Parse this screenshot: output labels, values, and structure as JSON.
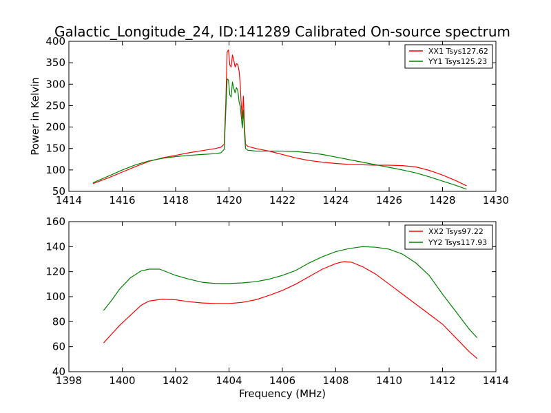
{
  "figure": {
    "title": "Galactic_Longitude_24, ID:141289 Calibrated On-source spectrum"
  },
  "chart_data": [
    {
      "type": "line",
      "xlabel": "",
      "ylabel": "Power in Kelvin",
      "xlim": [
        1414,
        1430
      ],
      "ylim": [
        50,
        400
      ],
      "xticks": [
        1414,
        1416,
        1418,
        1420,
        1422,
        1424,
        1426,
        1428,
        1430
      ],
      "yticks": [
        50,
        100,
        150,
        200,
        250,
        300,
        350,
        400
      ],
      "grid": false,
      "legend_position": "top-right",
      "series": [
        {
          "name": "XX1 Tsys127.62",
          "color": "#ff0000",
          "points": [
            [
              1414.9,
              68
            ],
            [
              1415.5,
              82
            ],
            [
              1416,
              95
            ],
            [
              1416.5,
              108
            ],
            [
              1417,
              120
            ],
            [
              1417.5,
              128
            ],
            [
              1418,
              134
            ],
            [
              1418.5,
              140
            ],
            [
              1419,
              145
            ],
            [
              1419.5,
              150
            ],
            [
              1419.7,
              153
            ],
            [
              1419.82,
              160
            ],
            [
              1419.88,
              260
            ],
            [
              1419.93,
              375
            ],
            [
              1419.98,
              380
            ],
            [
              1420.03,
              345
            ],
            [
              1420.08,
              340
            ],
            [
              1420.13,
              368
            ],
            [
              1420.18,
              355
            ],
            [
              1420.23,
              340
            ],
            [
              1420.28,
              348
            ],
            [
              1420.33,
              346
            ],
            [
              1420.38,
              330
            ],
            [
              1420.42,
              300
            ],
            [
              1420.46,
              250
            ],
            [
              1420.5,
              220
            ],
            [
              1420.54,
              272
            ],
            [
              1420.58,
              200
            ],
            [
              1420.62,
              160
            ],
            [
              1420.7,
              155
            ],
            [
              1421,
              150
            ],
            [
              1421.5,
              144
            ],
            [
              1422,
              136
            ],
            [
              1422.5,
              128
            ],
            [
              1423,
              122
            ],
            [
              1423.5,
              118
            ],
            [
              1424,
              115
            ],
            [
              1424.5,
              113
            ],
            [
              1425,
              112
            ],
            [
              1425.5,
              111
            ],
            [
              1426,
              111
            ],
            [
              1426.5,
              110
            ],
            [
              1427,
              107
            ],
            [
              1427.5,
              99
            ],
            [
              1428,
              88
            ],
            [
              1428.5,
              75
            ],
            [
              1428.9,
              63
            ]
          ]
        },
        {
          "name": "YY1 Tsys125.23",
          "color": "#008000",
          "points": [
            [
              1414.9,
              70
            ],
            [
              1415.5,
              86
            ],
            [
              1416,
              100
            ],
            [
              1416.5,
              112
            ],
            [
              1417,
              121
            ],
            [
              1417.5,
              127
            ],
            [
              1418,
              131
            ],
            [
              1418.5,
              134
            ],
            [
              1419,
              136
            ],
            [
              1419.5,
              138
            ],
            [
              1419.7,
              140
            ],
            [
              1419.82,
              148
            ],
            [
              1419.88,
              240
            ],
            [
              1419.93,
              312
            ],
            [
              1419.98,
              310
            ],
            [
              1420.03,
              275
            ],
            [
              1420.08,
              270
            ],
            [
              1420.13,
              305
            ],
            [
              1420.18,
              290
            ],
            [
              1420.23,
              280
            ],
            [
              1420.28,
              292
            ],
            [
              1420.33,
              285
            ],
            [
              1420.38,
              258
            ],
            [
              1420.42,
              248
            ],
            [
              1420.46,
              225
            ],
            [
              1420.5,
              198
            ],
            [
              1420.54,
              240
            ],
            [
              1420.58,
              185
            ],
            [
              1420.62,
              150
            ],
            [
              1420.7,
              146
            ],
            [
              1421,
              144
            ],
            [
              1421.5,
              144
            ],
            [
              1422,
              144
            ],
            [
              1422.5,
              143
            ],
            [
              1423,
              140
            ],
            [
              1423.5,
              136
            ],
            [
              1424,
              130
            ],
            [
              1424.5,
              124
            ],
            [
              1425,
              118
            ],
            [
              1425.5,
              112
            ],
            [
              1426,
              106
            ],
            [
              1426.5,
              100
            ],
            [
              1427,
              93
            ],
            [
              1427.5,
              84
            ],
            [
              1428,
              74
            ],
            [
              1428.5,
              64
            ],
            [
              1428.9,
              55
            ]
          ]
        }
      ]
    },
    {
      "type": "line",
      "xlabel": "Frequency (MHz)",
      "ylabel": "",
      "xlim": [
        1398,
        1414
      ],
      "ylim": [
        40,
        160
      ],
      "xticks": [
        1398,
        1400,
        1402,
        1404,
        1406,
        1408,
        1410,
        1412,
        1414
      ],
      "yticks": [
        40,
        60,
        80,
        100,
        120,
        140,
        160
      ],
      "grid": false,
      "legend_position": "top-right",
      "series": [
        {
          "name": "XX2 Tsys97.22",
          "color": "#ff0000",
          "points": [
            [
              1399.3,
              63
            ],
            [
              1399.6,
              70
            ],
            [
              1399.9,
              77
            ],
            [
              1400.3,
              85
            ],
            [
              1400.7,
              93
            ],
            [
              1401,
              96.5
            ],
            [
              1401.5,
              98
            ],
            [
              1402,
              97.5
            ],
            [
              1402.5,
              96
            ],
            [
              1403,
              95
            ],
            [
              1403.5,
              94.5
            ],
            [
              1404,
              94.5
            ],
            [
              1404.5,
              95.5
            ],
            [
              1405,
              97.5
            ],
            [
              1405.5,
              101
            ],
            [
              1406,
              105
            ],
            [
              1406.5,
              110
            ],
            [
              1407,
              116
            ],
            [
              1407.5,
              122
            ],
            [
              1408,
              126.5
            ],
            [
              1408.3,
              128
            ],
            [
              1408.6,
              127.5
            ],
            [
              1409,
              124
            ],
            [
              1409.5,
              118
            ],
            [
              1410,
              110
            ],
            [
              1410.5,
              102
            ],
            [
              1411,
              94
            ],
            [
              1411.5,
              86
            ],
            [
              1412,
              78
            ],
            [
              1412.5,
              67
            ],
            [
              1413,
              56
            ],
            [
              1413.3,
              50.5
            ]
          ]
        },
        {
          "name": "YY2 Tsys117.93",
          "color": "#008000",
          "points": [
            [
              1399.3,
              89
            ],
            [
              1399.6,
              97
            ],
            [
              1399.9,
              106
            ],
            [
              1400.3,
              115
            ],
            [
              1400.7,
              120.5
            ],
            [
              1401,
              122
            ],
            [
              1401.4,
              122
            ],
            [
              1402,
              117
            ],
            [
              1402.5,
              114
            ],
            [
              1403,
              111.5
            ],
            [
              1403.5,
              110.5
            ],
            [
              1404,
              110.5
            ],
            [
              1404.5,
              111
            ],
            [
              1405,
              112
            ],
            [
              1405.5,
              114
            ],
            [
              1406,
              117
            ],
            [
              1406.5,
              121
            ],
            [
              1407,
              127
            ],
            [
              1407.5,
              132
            ],
            [
              1408,
              136
            ],
            [
              1408.5,
              138.5
            ],
            [
              1409,
              140
            ],
            [
              1409.5,
              139.5
            ],
            [
              1410,
              138
            ],
            [
              1410.5,
              134
            ],
            [
              1411,
              127
            ],
            [
              1411.5,
              117
            ],
            [
              1412,
              102
            ],
            [
              1412.5,
              88
            ],
            [
              1413,
              74
            ],
            [
              1413.3,
              67
            ]
          ]
        }
      ]
    }
  ]
}
